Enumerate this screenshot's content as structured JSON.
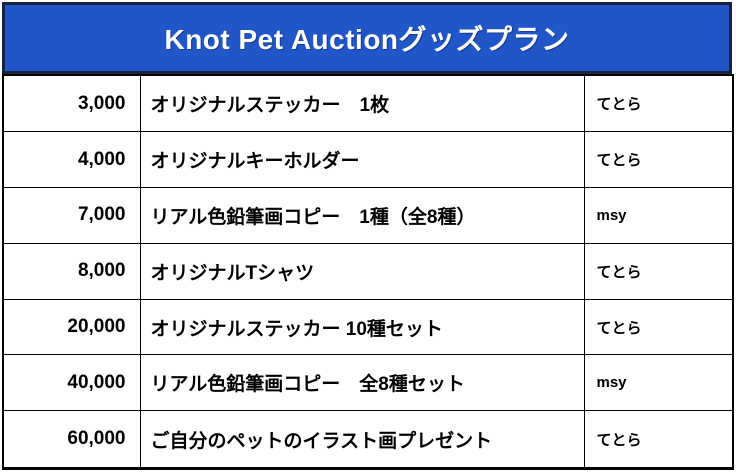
{
  "header": {
    "title": "Knot Pet Auctionグッズプラン"
  },
  "table": {
    "rows": [
      {
        "price": "3,000",
        "item": "オリジナルステッカー　1枚",
        "person": "てとら"
      },
      {
        "price": "4,000",
        "item": "オリジナルキーホルダー",
        "person": "てとら"
      },
      {
        "price": "7,000",
        "item": "リアル色鉛筆画コピー　1種（全8種）",
        "person": "msy"
      },
      {
        "price": "8,000",
        "item": "オリジナルTシャツ",
        "person": "てとら"
      },
      {
        "price": "20,000",
        "item": "オリジナルステッカー 10種セット",
        "person": "てとら"
      },
      {
        "price": "40,000",
        "item": "リアル色鉛筆画コピー　全8種セット",
        "person": "msy"
      },
      {
        "price": "60,000",
        "item": "ご自分のペットのイラスト画プレゼント",
        "person": "てとら"
      }
    ]
  },
  "colors": {
    "header_bg": "#2056C8",
    "header_border": "#17233F",
    "table_border": "#000000",
    "title_color": "#FFFFFF",
    "body_text": "#000000",
    "page_bg": "#FFFFFF"
  }
}
